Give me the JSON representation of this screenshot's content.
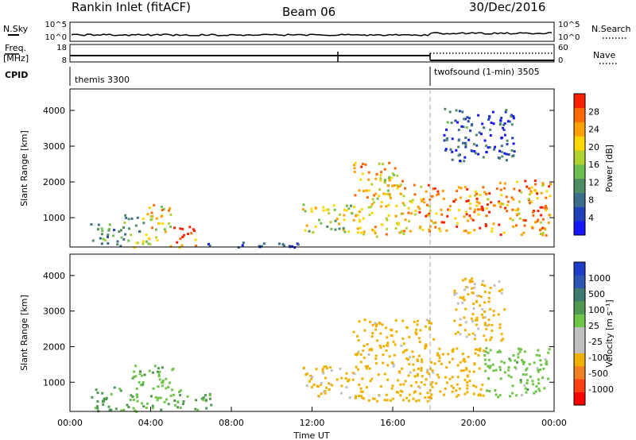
{
  "header": {
    "station": "Rankin Inlet (fitACF)",
    "beam": "Beam 06",
    "date": "30/Dec/2016"
  },
  "strips": {
    "nsky_label": "N.Sky",
    "nsearch_label": "N.Search",
    "freq_label_1": "Freq.",
    "freq_label_2": "[MHz]",
    "nave_label": "Nave",
    "cpid_label": "CPID",
    "nsky_ticks": [
      "10^5",
      "10^0"
    ],
    "nsearch_ticks": [
      "10^5",
      "10^0"
    ],
    "freq_ticks": [
      "18",
      "8"
    ],
    "nave_ticks": [
      "60",
      "0"
    ],
    "cpid_modes": [
      "themis 3300",
      "twofsound (1-min) 3505"
    ],
    "cpid_switch_hour": 18.0
  },
  "colors": {
    "power": [
      "#1515ff",
      "#2040b8",
      "#3c6e8c",
      "#4f8c64",
      "#6dc050",
      "#b0d230",
      "#ffd800",
      "#ffa000",
      "#ff6a00",
      "#ff2000"
    ],
    "velocity": [
      "#1e3cc8",
      "#2f55b4",
      "#3d7a70",
      "#4f9a50",
      "#6fc44a",
      "#c0c0c0",
      "#c0c0c0",
      "#f0b000",
      "#f08020",
      "#ff4010",
      "#ff0000"
    ]
  },
  "chart_data": [
    {
      "type": "heatmap",
      "ylabel": "Slant Range [km]",
      "xlabel": "",
      "y_ticks": [
        "1000",
        "2000",
        "3000",
        "4000"
      ],
      "x_ticks": [],
      "colorbar_label": "Power [dB]",
      "colorbar_ticks": [
        "4",
        "8",
        "12",
        "16",
        "20",
        "24",
        "28"
      ],
      "xlim": [
        0,
        24
      ],
      "ylim": [
        180,
        4600
      ],
      "clim": [
        0,
        32
      ],
      "regions": [
        {
          "t0": 1.0,
          "t1": 2.6,
          "r0": 200,
          "r1": 900,
          "v": 10
        },
        {
          "t0": 2.6,
          "t1": 3.7,
          "r0": 200,
          "r1": 1100,
          "v": 14
        },
        {
          "t0": 3.7,
          "t1": 5.0,
          "r0": 200,
          "r1": 1400,
          "v": 20
        },
        {
          "t0": 5.0,
          "t1": 6.2,
          "r0": 200,
          "r1": 800,
          "v": 27
        },
        {
          "t0": 6.2,
          "t1": 11.5,
          "r0": 200,
          "r1": 350,
          "v": 6
        },
        {
          "t0": 11.5,
          "t1": 14.0,
          "r0": 600,
          "r1": 1400,
          "v": 18
        },
        {
          "t0": 14.0,
          "t1": 16.5,
          "r0": 500,
          "r1": 2600,
          "v": 22
        },
        {
          "t0": 16.5,
          "t1": 18.0,
          "r0": 600,
          "r1": 2000,
          "v": 24
        },
        {
          "t0": 18.0,
          "t1": 21.0,
          "r0": 600,
          "r1": 1900,
          "v": 26
        },
        {
          "t0": 18.5,
          "t1": 22.0,
          "r0": 2600,
          "r1": 4100,
          "v": 6
        },
        {
          "t0": 21.0,
          "t1": 23.8,
          "r0": 500,
          "r1": 2100,
          "v": 24
        }
      ]
    },
    {
      "type": "heatmap",
      "ylabel": "Slant Range [km]",
      "xlabel": "Time UT",
      "y_ticks": [
        "1000",
        "2000",
        "3000",
        "4000"
      ],
      "x_ticks": [
        "00:00",
        "04:00",
        "08:00",
        "12:00",
        "16:00",
        "20:00",
        "00:00"
      ],
      "colorbar_label": "Velocity [m s⁻¹]",
      "colorbar_ticks": [
        "1000",
        "500",
        "100",
        "25",
        "-25",
        "-100",
        "-500",
        "-1000"
      ],
      "xlim": [
        0,
        24
      ],
      "ylim": [
        180,
        4600
      ],
      "regions": [
        {
          "t0": 1.0,
          "t1": 3.0,
          "r0": 200,
          "r1": 900,
          "v": 150
        },
        {
          "t0": 3.0,
          "t1": 5.5,
          "r0": 200,
          "r1": 1500,
          "v": 80
        },
        {
          "t0": 5.5,
          "t1": 7.0,
          "r0": 200,
          "r1": 700,
          "v": 120
        },
        {
          "t0": 11.5,
          "t1": 14.0,
          "r0": 600,
          "r1": 1500,
          "v": -150
        },
        {
          "t0": 14.0,
          "t1": 18.0,
          "r0": 500,
          "r1": 2800,
          "v": -200
        },
        {
          "t0": 18.0,
          "t1": 20.5,
          "r0": 600,
          "r1": 2000,
          "v": -300
        },
        {
          "t0": 19.0,
          "t1": 21.5,
          "r0": 2200,
          "r1": 4000,
          "v": -150
        },
        {
          "t0": 20.5,
          "t1": 23.8,
          "r0": 600,
          "r1": 2000,
          "v": 60
        }
      ]
    }
  ]
}
